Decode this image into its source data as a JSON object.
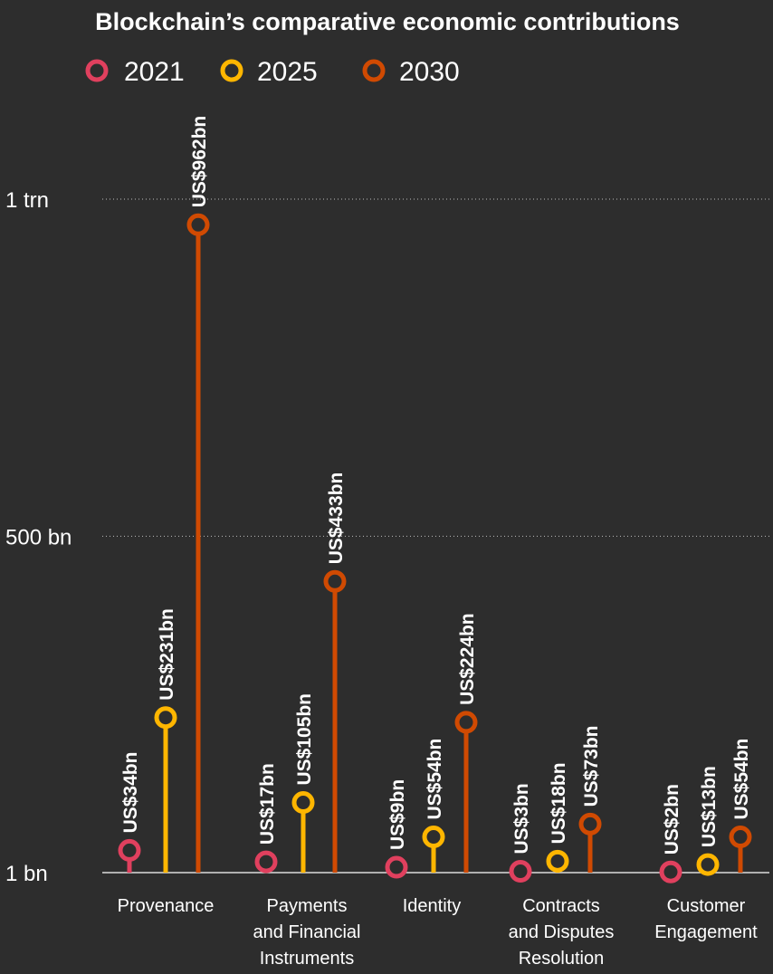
{
  "chart_data": {
    "type": "lollipop",
    "title": "Blockchain’s comparative economic contributions",
    "series": [
      {
        "name": "2021",
        "color": "#e0405e",
        "values": [
          34,
          17,
          9,
          3,
          2
        ],
        "labels": [
          "US$34bn",
          "US$17bn",
          "US$9bn",
          "US$3bn",
          "US$2bn"
        ]
      },
      {
        "name": "2025",
        "color": "#ffb600",
        "values": [
          231,
          105,
          54,
          18,
          13
        ],
        "labels": [
          "US$231bn",
          "US$105bn",
          "US$54bn",
          "US$18bn",
          "US$13bn"
        ]
      },
      {
        "name": "2030",
        "color": "#d04a02",
        "values": [
          962,
          433,
          224,
          73,
          54
        ],
        "labels": [
          "US$962bn",
          "US$433bn",
          "US$224bn",
          "US$73bn",
          "US$54bn"
        ]
      }
    ],
    "categories": [
      [
        "Provenance"
      ],
      [
        "Payments",
        "and Financial",
        "Instruments"
      ],
      [
        "Identity"
      ],
      [
        "Contracts",
        "and Disputes",
        "Resolution"
      ],
      [
        "Customer",
        "Engagement"
      ]
    ],
    "yticks": [
      {
        "value": 1,
        "label": "1 bn"
      },
      {
        "value": 500,
        "label": "500 bn"
      },
      {
        "value": 1000,
        "label": "1 trn"
      }
    ],
    "ylim": [
      1,
      1000
    ],
    "grid": true,
    "legend_position": "top-left"
  }
}
